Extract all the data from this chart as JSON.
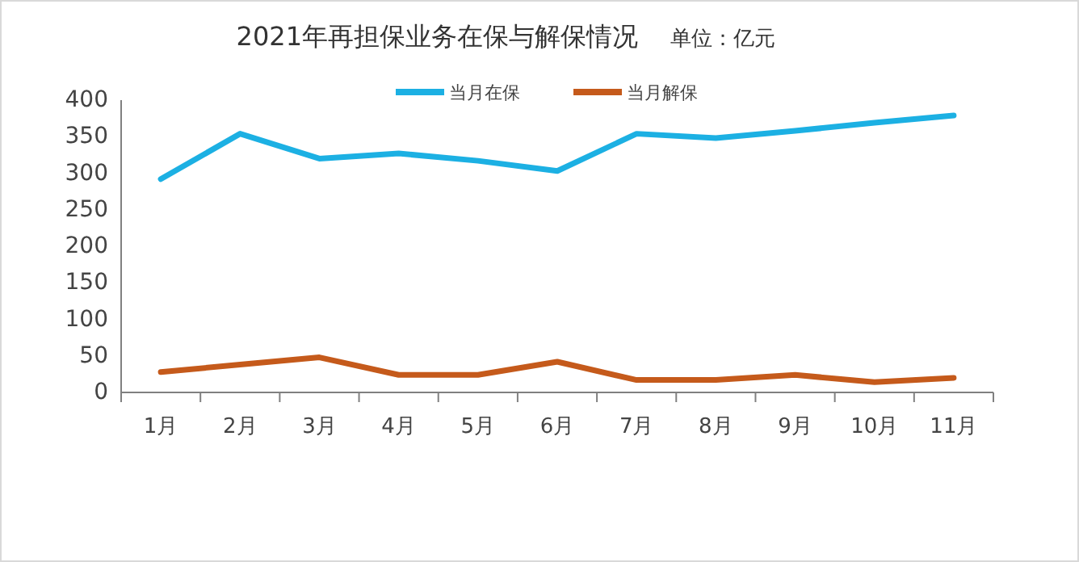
{
  "chart_data": {
    "type": "line",
    "title": "2021年再担保业务在保与解保情况",
    "subtitle": "单位：亿元",
    "categories": [
      "1月",
      "2月",
      "3月",
      "4月",
      "5月",
      "6月",
      "7月",
      "8月",
      "9月",
      "10月",
      "11月"
    ],
    "series": [
      {
        "name": "当月在保",
        "color": "#1cb0e3",
        "values": [
          292,
          354,
          320,
          327,
          317,
          303,
          354,
          348,
          358,
          369,
          379
        ]
      },
      {
        "name": "当月解保",
        "color": "#c55a1b",
        "values": [
          28,
          38,
          48,
          24,
          24,
          42,
          17,
          17,
          24,
          14,
          20
        ]
      }
    ],
    "ylim": [
      0,
      400
    ],
    "yticks": [
      0,
      50,
      100,
      150,
      200,
      250,
      300,
      350,
      400
    ],
    "grid": false,
    "legend": "top",
    "marker": "none",
    "line_style": "solid"
  }
}
